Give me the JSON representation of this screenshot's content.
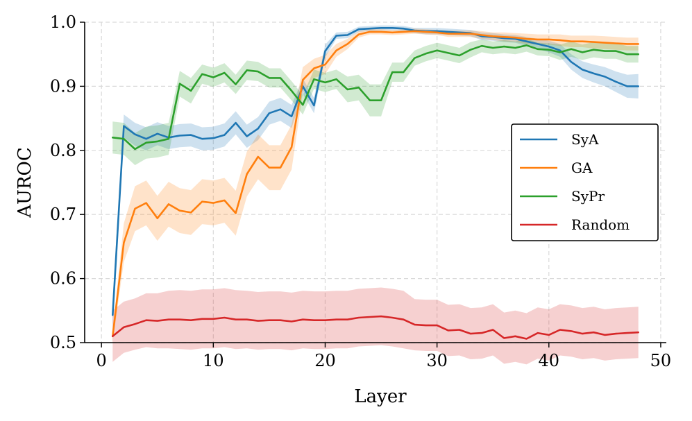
{
  "chart_data": {
    "type": "line",
    "title": "",
    "xlabel": "Layer",
    "ylabel": "AUROC",
    "xlim": [
      -1.5,
      50.5
    ],
    "ylim": [
      0.5,
      1.0
    ],
    "xticks": [
      0,
      10,
      20,
      30,
      40,
      50
    ],
    "xtick_labels": [
      "0",
      "10",
      "20",
      "30",
      "40",
      "50"
    ],
    "yticks": [
      0.5,
      0.6,
      0.7,
      0.8,
      0.9,
      1.0
    ],
    "ytick_labels": [
      "0.5",
      "0.6",
      "0.7",
      "0.8",
      "0.9",
      "1.0"
    ],
    "grid": true,
    "legend_position": "center-right",
    "x": [
      1,
      2,
      3,
      4,
      5,
      6,
      7,
      8,
      9,
      10,
      11,
      12,
      13,
      14,
      15,
      16,
      17,
      18,
      19,
      20,
      21,
      22,
      23,
      24,
      25,
      26,
      27,
      28,
      29,
      30,
      31,
      32,
      33,
      34,
      35,
      36,
      37,
      38,
      39,
      40,
      41,
      42,
      43,
      44,
      45,
      46,
      47,
      48
    ],
    "series": [
      {
        "name": "SyA",
        "color": "#1f77b4",
        "values": [
          0.543,
          0.838,
          0.825,
          0.818,
          0.826,
          0.82,
          0.823,
          0.824,
          0.818,
          0.819,
          0.824,
          0.843,
          0.822,
          0.834,
          0.858,
          0.864,
          0.853,
          0.9,
          0.87,
          0.955,
          0.979,
          0.98,
          0.989,
          0.99,
          0.991,
          0.991,
          0.99,
          0.987,
          0.986,
          0.986,
          0.985,
          0.984,
          0.983,
          0.978,
          0.977,
          0.975,
          0.974,
          0.97,
          0.966,
          0.962,
          0.956,
          0.938,
          0.926,
          0.92,
          0.915,
          0.907,
          0.9,
          0.9
        ],
        "band": [
          0.025,
          0.018,
          0.018,
          0.018,
          0.018,
          0.018,
          0.018,
          0.018,
          0.018,
          0.018,
          0.018,
          0.018,
          0.018,
          0.018,
          0.018,
          0.018,
          0.018,
          0.012,
          0.012,
          0.01,
          0.005,
          0.005,
          0.004,
          0.004,
          0.004,
          0.004,
          0.004,
          0.004,
          0.005,
          0.005,
          0.005,
          0.005,
          0.005,
          0.006,
          0.006,
          0.006,
          0.006,
          0.007,
          0.008,
          0.009,
          0.01,
          0.012,
          0.013,
          0.014,
          0.015,
          0.016,
          0.018,
          0.019
        ]
      },
      {
        "name": "GA",
        "color": "#ff7f0e",
        "values": [
          0.51,
          0.656,
          0.709,
          0.718,
          0.694,
          0.716,
          0.706,
          0.703,
          0.72,
          0.718,
          0.722,
          0.702,
          0.763,
          0.79,
          0.773,
          0.773,
          0.805,
          0.91,
          0.928,
          0.934,
          0.956,
          0.966,
          0.981,
          0.985,
          0.985,
          0.984,
          0.985,
          0.986,
          0.985,
          0.984,
          0.982,
          0.982,
          0.982,
          0.98,
          0.978,
          0.977,
          0.976,
          0.974,
          0.973,
          0.973,
          0.972,
          0.97,
          0.97,
          0.969,
          0.968,
          0.967,
          0.966,
          0.966
        ],
        "band": [
          0.01,
          0.03,
          0.035,
          0.035,
          0.035,
          0.035,
          0.035,
          0.035,
          0.035,
          0.035,
          0.035,
          0.035,
          0.035,
          0.035,
          0.035,
          0.035,
          0.035,
          0.02,
          0.015,
          0.015,
          0.01,
          0.008,
          0.005,
          0.004,
          0.004,
          0.004,
          0.004,
          0.004,
          0.004,
          0.004,
          0.005,
          0.005,
          0.005,
          0.006,
          0.006,
          0.007,
          0.007,
          0.008,
          0.008,
          0.008,
          0.009,
          0.009,
          0.009,
          0.01,
          0.01,
          0.01,
          0.01,
          0.01
        ]
      },
      {
        "name": "SyPr",
        "color": "#2ca02c",
        "values": [
          0.82,
          0.818,
          0.802,
          0.812,
          0.814,
          0.818,
          0.904,
          0.893,
          0.919,
          0.914,
          0.921,
          0.903,
          0.925,
          0.923,
          0.913,
          0.913,
          0.893,
          0.871,
          0.911,
          0.906,
          0.911,
          0.895,
          0.898,
          0.878,
          0.878,
          0.922,
          0.922,
          0.944,
          0.951,
          0.956,
          0.952,
          0.948,
          0.957,
          0.963,
          0.96,
          0.962,
          0.96,
          0.964,
          0.958,
          0.957,
          0.953,
          0.958,
          0.953,
          0.957,
          0.955,
          0.955,
          0.95,
          0.95
        ],
        "band": [
          0.025,
          0.025,
          0.025,
          0.025,
          0.025,
          0.025,
          0.02,
          0.02,
          0.015,
          0.015,
          0.015,
          0.015,
          0.015,
          0.015,
          0.015,
          0.015,
          0.015,
          0.015,
          0.015,
          0.015,
          0.015,
          0.02,
          0.02,
          0.025,
          0.025,
          0.015,
          0.015,
          0.012,
          0.012,
          0.012,
          0.012,
          0.012,
          0.012,
          0.01,
          0.01,
          0.01,
          0.01,
          0.01,
          0.01,
          0.01,
          0.012,
          0.012,
          0.012,
          0.012,
          0.012,
          0.012,
          0.013,
          0.013
        ]
      },
      {
        "name": "Random",
        "color": "#d62728",
        "values": [
          0.51,
          0.524,
          0.529,
          0.535,
          0.534,
          0.536,
          0.536,
          0.535,
          0.537,
          0.537,
          0.539,
          0.536,
          0.536,
          0.534,
          0.535,
          0.535,
          0.533,
          0.536,
          0.535,
          0.535,
          0.536,
          0.536,
          0.539,
          0.54,
          0.541,
          0.539,
          0.536,
          0.528,
          0.527,
          0.527,
          0.519,
          0.52,
          0.514,
          0.515,
          0.52,
          0.507,
          0.51,
          0.506,
          0.515,
          0.512,
          0.52,
          0.518,
          0.514,
          0.516,
          0.512,
          0.514,
          0.515,
          0.516
        ],
        "band": [
          0.04,
          0.04,
          0.04,
          0.042,
          0.043,
          0.045,
          0.046,
          0.046,
          0.046,
          0.046,
          0.046,
          0.046,
          0.045,
          0.045,
          0.045,
          0.045,
          0.045,
          0.045,
          0.045,
          0.045,
          0.045,
          0.045,
          0.045,
          0.045,
          0.045,
          0.045,
          0.045,
          0.04,
          0.04,
          0.04,
          0.04,
          0.04,
          0.04,
          0.04,
          0.04,
          0.04,
          0.04,
          0.04,
          0.04,
          0.04,
          0.04,
          0.04,
          0.04,
          0.04,
          0.04,
          0.04,
          0.04,
          0.04
        ]
      }
    ]
  }
}
